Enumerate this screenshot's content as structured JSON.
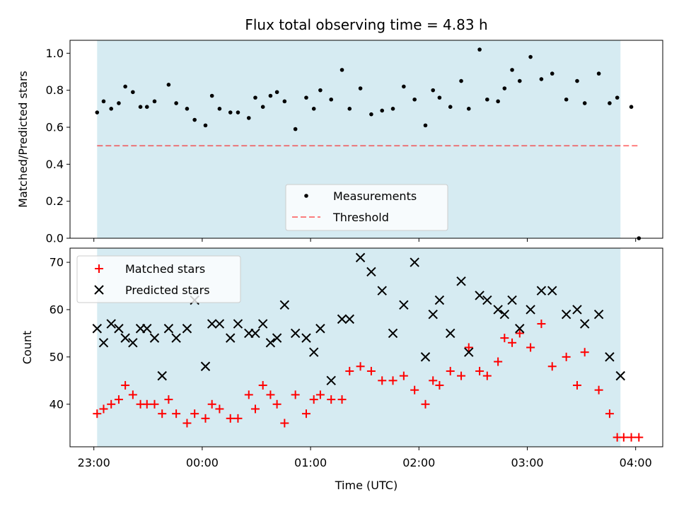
{
  "colors": {
    "shade": "#add8e6",
    "measurement": "#000000",
    "threshold": "#ff0000",
    "matched": "#ff0000",
    "predicted": "#000000"
  },
  "chart_data": [
    {
      "type": "scatter",
      "title": "Flux total observing time = 4.83 h",
      "xlabel": "",
      "ylabel": "Matched/Predicted stars",
      "ylim": [
        0.0,
        1.07
      ],
      "yticks": [
        "0.0",
        "0.2",
        "0.4",
        "0.6",
        "0.8",
        "1.0"
      ],
      "xlim_hours": [
        -0.22,
        5.25
      ],
      "shaded_span_hours": [
        0.03,
        4.86
      ],
      "legend": {
        "placement": "lower center",
        "labels": [
          "Measurements",
          "Threshold"
        ]
      },
      "threshold": {
        "name": "Threshold",
        "value": 0.5,
        "x_from": 0.03,
        "x_to": 5.03
      },
      "series": [
        {
          "name": "Measurements",
          "x": [
            0.03,
            0.09,
            0.16,
            0.23,
            0.29,
            0.36,
            0.43,
            0.49,
            0.56,
            0.69,
            0.76,
            0.86,
            0.93,
            1.03,
            1.09,
            1.16,
            1.26,
            1.33,
            1.43,
            1.49,
            1.56,
            1.63,
            1.69,
            1.76,
            1.86,
            1.96,
            2.03,
            2.09,
            2.19,
            2.29,
            2.36,
            2.46,
            2.56,
            2.66,
            2.76,
            2.86,
            2.96,
            3.06,
            3.13,
            3.19,
            3.29,
            3.39,
            3.46,
            3.56,
            3.63,
            3.73,
            3.79,
            3.86,
            3.93,
            4.03,
            4.13,
            4.23,
            4.36,
            4.46,
            4.53,
            4.66,
            4.76,
            4.83,
            4.96,
            5.03
          ],
          "y": [
            0.68,
            0.74,
            0.7,
            0.73,
            0.82,
            0.79,
            0.71,
            0.71,
            0.74,
            0.83,
            0.73,
            0.7,
            0.64,
            0.61,
            0.77,
            0.7,
            0.68,
            0.68,
            0.65,
            0.76,
            0.71,
            0.77,
            0.79,
            0.74,
            0.59,
            0.76,
            0.7,
            0.8,
            0.75,
            0.91,
            0.7,
            0.81,
            0.67,
            0.69,
            0.7,
            0.82,
            0.75,
            0.61,
            0.8,
            0.76,
            0.71,
            0.85,
            0.7,
            1.02,
            0.75,
            0.74,
            0.81,
            0.91,
            0.85,
            0.98,
            0.86,
            0.89,
            0.75,
            0.85,
            0.73,
            0.89,
            0.73,
            0.76,
            0.71,
            0.0
          ]
        }
      ]
    },
    {
      "type": "scatter",
      "title": "",
      "xlabel": "Time (UTC)",
      "ylabel": "Count",
      "ylim": [
        31,
        73
      ],
      "yticks": [
        "40",
        "50",
        "60",
        "70"
      ],
      "xlim_hours": [
        -0.22,
        5.25
      ],
      "xticks": [
        "23:00",
        "00:00",
        "01:00",
        "02:00",
        "03:00",
        "04:00"
      ],
      "x_origin_label": "23:00",
      "shaded_span_hours": [
        0.03,
        4.86
      ],
      "legend": {
        "placement": "upper left",
        "labels": [
          "Matched stars",
          "Predicted stars"
        ]
      },
      "series": [
        {
          "name": "Matched stars",
          "x": [
            0.03,
            0.09,
            0.16,
            0.23,
            0.29,
            0.36,
            0.43,
            0.49,
            0.56,
            0.63,
            0.69,
            0.76,
            0.86,
            0.93,
            1.03,
            1.09,
            1.16,
            1.26,
            1.33,
            1.43,
            1.49,
            1.56,
            1.63,
            1.69,
            1.76,
            1.86,
            1.96,
            2.03,
            2.09,
            2.19,
            2.29,
            2.36,
            2.46,
            2.56,
            2.66,
            2.76,
            2.86,
            2.96,
            3.06,
            3.13,
            3.19,
            3.29,
            3.39,
            3.46,
            3.56,
            3.63,
            3.73,
            3.79,
            3.86,
            3.93,
            4.03,
            4.13,
            4.23,
            4.36,
            4.46,
            4.53,
            4.66,
            4.76,
            4.83,
            4.89,
            4.96,
            5.03
          ],
          "y": [
            38,
            39,
            40,
            41,
            44,
            42,
            40,
            40,
            40,
            38,
            41,
            38,
            36,
            38,
            37,
            40,
            39,
            37,
            37,
            42,
            39,
            44,
            42,
            40,
            36,
            42,
            38,
            41,
            42,
            41,
            41,
            47,
            48,
            47,
            45,
            45,
            46,
            43,
            40,
            45,
            44,
            47,
            46,
            52,
            47,
            46,
            49,
            54,
            53,
            55,
            52,
            57,
            48,
            50,
            44,
            51,
            43,
            38,
            33,
            33,
            33,
            33
          ]
        },
        {
          "name": "Predicted stars",
          "x": [
            0.03,
            0.09,
            0.16,
            0.23,
            0.29,
            0.36,
            0.43,
            0.49,
            0.56,
            0.63,
            0.69,
            0.76,
            0.86,
            0.93,
            1.03,
            1.09,
            1.16,
            1.26,
            1.33,
            1.43,
            1.49,
            1.56,
            1.63,
            1.69,
            1.76,
            1.86,
            1.96,
            2.03,
            2.09,
            2.19,
            2.29,
            2.36,
            2.46,
            2.56,
            2.66,
            2.76,
            2.86,
            2.96,
            3.06,
            3.13,
            3.19,
            3.29,
            3.39,
            3.46,
            3.56,
            3.63,
            3.73,
            3.79,
            3.86,
            3.93,
            4.03,
            4.13,
            4.23,
            4.36,
            4.46,
            4.53,
            4.66,
            4.76,
            4.86
          ],
          "y": [
            56,
            53,
            57,
            56,
            54,
            53,
            56,
            56,
            54,
            46,
            56,
            54,
            56,
            62,
            48,
            57,
            57,
            54,
            57,
            55,
            55,
            57,
            53,
            54,
            61,
            55,
            54,
            51,
            56,
            45,
            58,
            58,
            71,
            68,
            64,
            55,
            61,
            70,
            50,
            59,
            62,
            55,
            66,
            51,
            63,
            62,
            60,
            59,
            62,
            56,
            60,
            64,
            64,
            59,
            60,
            57,
            59,
            50,
            46
          ]
        }
      ]
    }
  ]
}
